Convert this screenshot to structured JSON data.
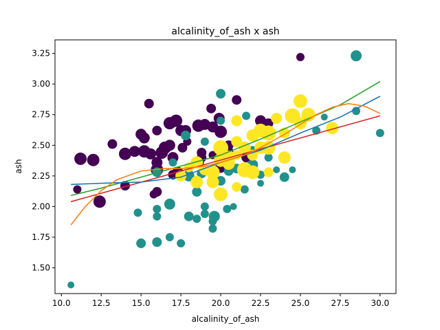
{
  "chart_data": {
    "type": "scatter",
    "title": "alcalinity_of_ash x ash",
    "xlabel": "alcalinity_of_ash",
    "ylabel": "ash",
    "xlim": [
      9.6,
      31.0
    ],
    "ylim": [
      1.29,
      3.36
    ],
    "xticks": [
      "10.0",
      "12.5",
      "15.0",
      "17.5",
      "20.0",
      "22.5",
      "25.0",
      "27.5",
      "30.0"
    ],
    "yticks": [
      "1.50",
      "1.75",
      "2.00",
      "2.25",
      "2.50",
      "2.75",
      "3.00",
      "3.25"
    ],
    "grid": false,
    "colors": {
      "class0": "#440154",
      "class1": "#21918c",
      "class2": "#fde725"
    },
    "series": [
      {
        "class": 0,
        "color": "#440154",
        "points": [
          [
            11.2,
            2.39,
            9
          ],
          [
            11.0,
            2.14,
            6
          ],
          [
            12.0,
            2.38,
            9
          ],
          [
            12.4,
            2.04,
            9
          ],
          [
            13.2,
            2.51,
            7
          ],
          [
            14.0,
            2.43,
            9
          ],
          [
            14.0,
            2.17,
            7
          ],
          [
            14.6,
            2.45,
            8
          ],
          [
            15.2,
            2.45,
            9
          ],
          [
            15.0,
            2.59,
            8
          ],
          [
            15.2,
            2.56,
            8
          ],
          [
            15.5,
            2.84,
            7
          ],
          [
            15.6,
            2.43,
            8
          ],
          [
            15.8,
            2.1,
            6
          ],
          [
            16.0,
            2.12,
            7
          ],
          [
            16.0,
            2.3,
            9
          ],
          [
            16.0,
            2.62,
            7
          ],
          [
            16.0,
            2.36,
            8
          ],
          [
            16.3,
            2.44,
            9
          ],
          [
            16.5,
            2.48,
            9
          ],
          [
            16.8,
            2.5,
            8
          ],
          [
            16.8,
            2.68,
            9
          ],
          [
            17.0,
            2.4,
            8
          ],
          [
            17.2,
            2.7,
            9
          ],
          [
            17.3,
            2.28,
            8
          ],
          [
            17.5,
            2.62,
            8
          ],
          [
            17.8,
            2.62,
            8
          ],
          [
            17.6,
            2.48,
            7
          ],
          [
            18.0,
            2.27,
            6
          ],
          [
            17.9,
            2.53,
            6
          ],
          [
            18.6,
            2.66,
            9
          ],
          [
            18.8,
            2.4,
            7
          ],
          [
            18.6,
            2.36,
            8
          ],
          [
            18.8,
            2.44,
            7
          ],
          [
            19.0,
            2.67,
            8
          ],
          [
            19.4,
            2.8,
            7
          ],
          [
            19.5,
            2.65,
            8
          ],
          [
            19.9,
            2.72,
            8
          ],
          [
            20.0,
            2.61,
            9
          ],
          [
            20.4,
            2.45,
            9
          ],
          [
            21.0,
            2.87,
            7
          ],
          [
            20.5,
            2.5,
            7
          ],
          [
            20.0,
            2.32,
            8
          ],
          [
            21.6,
            2.4,
            7
          ],
          [
            22.0,
            2.31,
            7
          ],
          [
            22.5,
            2.7,
            8
          ],
          [
            23.0,
            2.68,
            7
          ],
          [
            25.0,
            3.22,
            6
          ],
          [
            19.5,
            2.42,
            6
          ],
          [
            17.0,
            2.26,
            7
          ]
        ]
      },
      {
        "class": 1,
        "color": "#21918c",
        "points": [
          [
            10.6,
            1.36,
            5
          ],
          [
            14.8,
            1.95,
            6
          ],
          [
            15.0,
            1.7,
            7
          ],
          [
            16.0,
            1.98,
            6
          ],
          [
            16.0,
            1.92,
            6
          ],
          [
            16.0,
            1.71,
            7
          ],
          [
            16.0,
            2.28,
            7
          ],
          [
            16.8,
            1.75,
            6
          ],
          [
            16.8,
            2.02,
            8
          ],
          [
            17.0,
            2.36,
            6
          ],
          [
            17.5,
            1.7,
            6
          ],
          [
            17.8,
            2.58,
            7
          ],
          [
            18.0,
            1.92,
            7
          ],
          [
            18.0,
            2.25,
            8
          ],
          [
            18.5,
            1.9,
            6
          ],
          [
            18.5,
            2.12,
            7
          ],
          [
            18.8,
            2.27,
            7
          ],
          [
            19.0,
            2.53,
            6
          ],
          [
            19.0,
            2.0,
            6
          ],
          [
            19.0,
            1.94,
            6
          ],
          [
            19.5,
            1.82,
            6
          ],
          [
            19.5,
            1.88,
            6
          ],
          [
            19.6,
            1.92,
            8
          ],
          [
            19.5,
            2.3,
            7
          ],
          [
            20.0,
            2.7,
            6
          ],
          [
            20.0,
            2.92,
            7
          ],
          [
            20.0,
            2.21,
            7
          ],
          [
            20.5,
            2.29,
            7
          ],
          [
            20.4,
            1.98,
            6
          ],
          [
            20.8,
            2.0,
            5
          ],
          [
            21.0,
            2.16,
            6
          ],
          [
            21.0,
            2.31,
            7
          ],
          [
            21.5,
            2.28,
            7
          ],
          [
            21.5,
            2.14,
            6
          ],
          [
            21.6,
            2.74,
            6
          ],
          [
            22.0,
            2.34,
            8
          ],
          [
            22.0,
            2.46,
            6
          ],
          [
            22.5,
            2.26,
            6
          ],
          [
            22.5,
            2.19,
            5
          ],
          [
            23.0,
            2.4,
            6
          ],
          [
            23.5,
            2.3,
            5
          ],
          [
            24.0,
            2.24,
            7
          ],
          [
            24.5,
            2.3,
            5
          ],
          [
            26.0,
            2.62,
            6
          ],
          [
            26.5,
            2.73,
            5
          ],
          [
            28.5,
            2.78,
            6
          ],
          [
            28.5,
            3.23,
            8
          ],
          [
            30.0,
            2.6,
            6
          ]
        ]
      },
      {
        "class": 2,
        "color": "#fde725",
        "points": [
          [
            17.5,
            2.25,
            8
          ],
          [
            18.0,
            2.32,
            7
          ],
          [
            18.5,
            2.36,
            9
          ],
          [
            18.5,
            2.2,
            9
          ],
          [
            19.0,
            2.3,
            8
          ],
          [
            19.5,
            2.28,
            10
          ],
          [
            19.5,
            2.2,
            9
          ],
          [
            20.0,
            2.1,
            10
          ],
          [
            20.0,
            2.48,
            11
          ],
          [
            20.0,
            2.38,
            10
          ],
          [
            20.5,
            2.35,
            9
          ],
          [
            20.5,
            2.4,
            10
          ],
          [
            21.0,
            2.16,
            7
          ],
          [
            21.0,
            2.53,
            8
          ],
          [
            21.0,
            2.7,
            8
          ],
          [
            21.5,
            2.48,
            9
          ],
          [
            21.5,
            2.3,
            11
          ],
          [
            22.0,
            2.28,
            10
          ],
          [
            22.0,
            2.58,
            9
          ],
          [
            22.0,
            2.42,
            8
          ],
          [
            22.5,
            2.48,
            9
          ],
          [
            22.5,
            2.62,
            10
          ],
          [
            23.0,
            2.6,
            11
          ],
          [
            23.0,
            2.48,
            10
          ],
          [
            23.5,
            2.72,
            8
          ],
          [
            24.0,
            2.4,
            9
          ],
          [
            24.0,
            2.6,
            8
          ],
          [
            24.5,
            2.74,
            11
          ],
          [
            25.0,
            2.86,
            10
          ],
          [
            25.0,
            2.68,
            9
          ],
          [
            25.5,
            2.75,
            10
          ],
          [
            27.0,
            2.64,
            9
          ],
          [
            23.0,
            2.28,
            7
          ],
          [
            21.0,
            2.42,
            7
          ]
        ]
      }
    ],
    "fits": [
      {
        "degree": 1,
        "color": "#d62728",
        "x": [
          10.6,
          30.0
        ],
        "y": [
          2.04,
          2.74
        ]
      },
      {
        "degree": 2,
        "color": "#2ca02c",
        "x": [
          10.6,
          12.5,
          15.0,
          17.5,
          20.0,
          22.5,
          25.0,
          27.5,
          30.0
        ],
        "y": [
          2.09,
          2.15,
          2.24,
          2.33,
          2.42,
          2.55,
          2.69,
          2.83,
          3.02
        ]
      },
      {
        "degree": 3,
        "color": "#1f77b4",
        "x": [
          10.6,
          12.5,
          15.0,
          17.5,
          20.0,
          22.5,
          25.0,
          27.5,
          30.0
        ],
        "y": [
          2.18,
          2.19,
          2.2,
          2.24,
          2.36,
          2.46,
          2.6,
          2.73,
          2.9
        ]
      },
      {
        "degree": 4,
        "color": "#ff7f0e",
        "x": [
          10.6,
          11.5,
          12.5,
          13.5,
          15.0,
          16.5,
          17.5,
          19.0,
          20.0,
          21.5,
          22.5,
          24.0,
          25.0,
          26.0,
          27.0,
          28.0,
          29.0,
          30.0
        ],
        "y": [
          1.85,
          2.0,
          2.13,
          2.22,
          2.29,
          2.31,
          2.31,
          2.33,
          2.36,
          2.42,
          2.48,
          2.59,
          2.67,
          2.75,
          2.81,
          2.84,
          2.82,
          2.76
        ]
      }
    ]
  }
}
